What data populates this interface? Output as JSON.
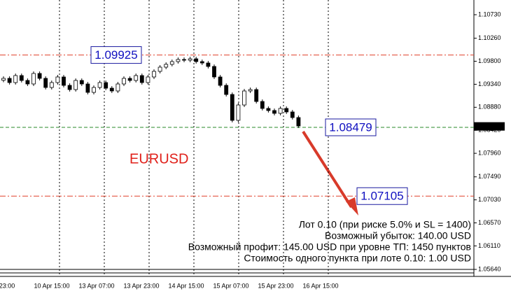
{
  "chart_data": {
    "type": "candlestick",
    "symbol": "EURUSD",
    "ylim": [
      1.05668,
      1.11024
    ],
    "yticks": [
      {
        "value": 1.1073,
        "label": "1.10730"
      },
      {
        "value": 1.1026,
        "label": "1.10260"
      },
      {
        "value": 1.098,
        "label": "1.09800"
      },
      {
        "value": 1.0934,
        "label": "1.09340"
      },
      {
        "value": 1.0888,
        "label": "1.08880"
      },
      {
        "value": 1.0842,
        "label": "1.08420"
      },
      {
        "value": 1.0796,
        "label": "1.07960"
      },
      {
        "value": 1.0749,
        "label": "1.07490"
      },
      {
        "value": 1.0703,
        "label": "1.07030"
      },
      {
        "value": 1.0657,
        "label": "1.06570"
      },
      {
        "value": 1.0611,
        "label": "1.06110"
      },
      {
        "value": 1.0564,
        "label": "1.05640"
      }
    ],
    "x_labels": [
      "23:00",
      "10 Apr 15:00",
      "13 Apr 07:00",
      "13 Apr 23:00",
      "14 Apr 15:00",
      "15 Apr 07:00",
      "15 Apr 23:00",
      "16 Apr 15:00"
    ],
    "current_price": 1.08498,
    "levels": [
      {
        "value": 1.09925,
        "color": "#e0402a",
        "style": "dashdot"
      },
      {
        "value": 1.08479,
        "color": "#2a8a2a",
        "style": "dash"
      },
      {
        "value": 1.07105,
        "color": "#e0402a",
        "style": "dashdot"
      }
    ],
    "candles": {
      "open": [
        1.0942,
        1.09458,
        1.09374,
        1.09514,
        1.09416,
        1.09346,
        1.09556,
        1.09458,
        1.09276,
        1.09374,
        1.09486,
        1.09318,
        1.09234,
        1.09416,
        1.09346,
        1.09178,
        1.09276,
        1.09374,
        1.09262,
        1.09206,
        1.09346,
        1.09458,
        1.09416,
        1.09514,
        1.09374,
        1.09486,
        1.09598,
        1.09682,
        1.09738,
        1.09793,
        1.09835,
        1.09821,
        1.09849,
        1.09793,
        1.09765,
        1.09696,
        1.09486,
        1.09318,
        1.09136,
        1.08619,
        1.08926,
        1.09206,
        1.09234,
        1.08996,
        1.08857,
        1.08815,
        1.08759,
        1.08857,
        1.08787,
        1.08675
      ],
      "high": [
        1.09498,
        1.09498,
        1.09554,
        1.09554,
        1.09456,
        1.09596,
        1.09596,
        1.09498,
        1.09414,
        1.09526,
        1.09526,
        1.09358,
        1.09456,
        1.09456,
        1.09386,
        1.09316,
        1.09414,
        1.09414,
        1.09302,
        1.09386,
        1.09498,
        1.09498,
        1.09554,
        1.09554,
        1.09526,
        1.09638,
        1.09722,
        1.09778,
        1.09833,
        1.09875,
        1.09875,
        1.09889,
        1.09889,
        1.09833,
        1.09805,
        1.09736,
        1.09526,
        1.09358,
        1.09176,
        1.08966,
        1.09246,
        1.09274,
        1.09274,
        1.09036,
        1.08897,
        1.08855,
        1.08897,
        1.08897,
        1.08827,
        1.08715
      ],
      "low": [
        1.0938,
        1.09334,
        1.09334,
        1.09376,
        1.09306,
        1.09306,
        1.09418,
        1.09236,
        1.09236,
        1.09334,
        1.09278,
        1.09194,
        1.09194,
        1.09306,
        1.09138,
        1.09138,
        1.09236,
        1.09222,
        1.09166,
        1.09166,
        1.09306,
        1.09376,
        1.09376,
        1.09334,
        1.09334,
        1.09446,
        1.09558,
        1.09642,
        1.09698,
        1.09753,
        1.09781,
        1.09781,
        1.09753,
        1.09725,
        1.09656,
        1.09446,
        1.09278,
        1.09096,
        1.08579,
        1.08579,
        1.08886,
        1.09166,
        1.08956,
        1.08817,
        1.08775,
        1.08719,
        1.08719,
        1.08747,
        1.08635,
        1.08467
      ],
      "close": [
        1.09458,
        1.09374,
        1.09514,
        1.09416,
        1.09346,
        1.09556,
        1.09458,
        1.09276,
        1.09374,
        1.09486,
        1.09318,
        1.09234,
        1.09416,
        1.09346,
        1.09178,
        1.09276,
        1.09374,
        1.09262,
        1.09206,
        1.09346,
        1.09458,
        1.09416,
        1.09514,
        1.09374,
        1.09486,
        1.09598,
        1.09682,
        1.09738,
        1.09793,
        1.09835,
        1.09821,
        1.09849,
        1.09793,
        1.09765,
        1.09696,
        1.09486,
        1.09318,
        1.09136,
        1.08619,
        1.08926,
        1.09206,
        1.09234,
        1.08996,
        1.08857,
        1.08815,
        1.08759,
        1.08857,
        1.08787,
        1.08675,
        1.08507
      ]
    },
    "info_lines": [
      "Лот 0.10 (при риске 5.0% и SL = 1400)",
      "Возможный убыток: 140.00 USD",
      "Возможный профит: 145.00 USD при уровне ТП: 1450 пунктов",
      "Стоимость одного пункта при лоте 0.10: 1.00 USD"
    ]
  }
}
